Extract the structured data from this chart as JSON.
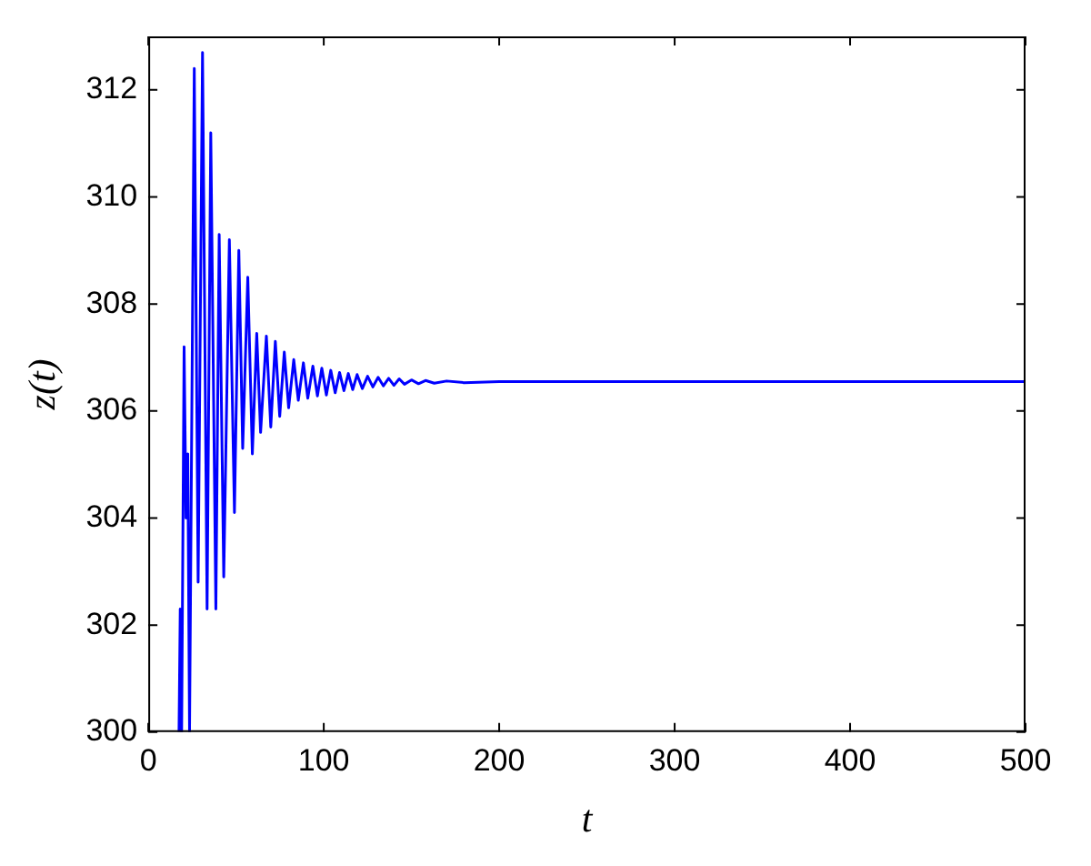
{
  "chart_data": {
    "type": "line",
    "xlabel": "t",
    "ylabel": "z(t)",
    "xlim": [
      0,
      500
    ],
    "ylim": [
      300,
      313
    ],
    "xticks": [
      0,
      100,
      200,
      300,
      400,
      500
    ],
    "yticks": [
      300,
      302,
      304,
      306,
      308,
      310,
      312
    ],
    "grid": false,
    "legend": false,
    "marker": "none",
    "line_style": "solid",
    "series": [
      {
        "color": "#0000ff",
        "x": [
          17.5,
          18.2,
          19,
          20.4,
          21.5,
          22.5,
          23.5,
          26.2,
          28.4,
          30.9,
          33.5,
          35.6,
          38.5,
          40.4,
          43,
          46.2,
          49.1,
          51.6,
          53.8,
          56.7,
          59.3,
          61.8,
          64,
          67.3,
          69.8,
          72.4,
          74.9,
          77.5,
          80,
          82.9,
          85.5,
          88.4,
          90.9,
          93.8,
          96.4,
          98.9,
          101.5,
          104,
          106.5,
          109,
          111.5,
          114,
          116.5,
          119,
          122,
          125,
          128,
          131,
          134,
          137,
          140,
          143,
          146,
          150,
          154,
          158,
          163,
          170,
          180,
          200,
          500
        ],
        "values": [
          300,
          302.3,
          300,
          307.2,
          304,
          305.2,
          300,
          312.4,
          302.8,
          312.7,
          302.3,
          311.2,
          302.3,
          309.3,
          302.9,
          309.2,
          304.1,
          309,
          305.3,
          308.5,
          305.2,
          307.45,
          305.6,
          307.4,
          305.7,
          307.3,
          305.9,
          307.1,
          306.06,
          306.96,
          306.2,
          306.9,
          306.24,
          306.84,
          306.28,
          306.8,
          306.3,
          306.76,
          306.34,
          306.72,
          306.38,
          306.7,
          306.4,
          306.68,
          306.42,
          306.65,
          306.45,
          306.63,
          306.47,
          306.61,
          306.48,
          306.6,
          306.5,
          306.58,
          306.51,
          306.57,
          306.52,
          306.56,
          306.53,
          306.55,
          306.55
        ]
      }
    ]
  }
}
